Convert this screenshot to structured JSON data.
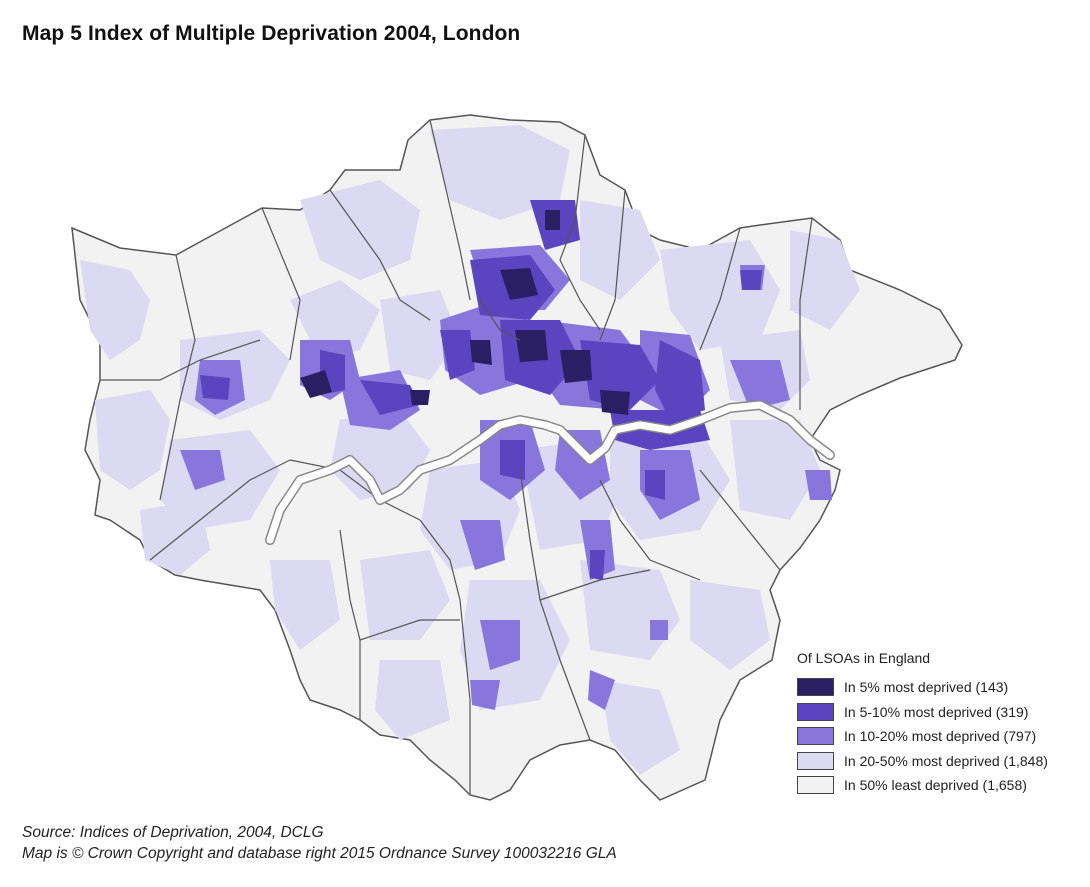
{
  "title": "Map 5 Index of Multiple Deprivation 2004, London",
  "legend": {
    "title": "Of LSOAs in England",
    "items": [
      {
        "label": "In 5% most deprived (143)",
        "color": "#2a1f63",
        "count": 143
      },
      {
        "label": "In 5-10% most deprived (319)",
        "color": "#5a44bf",
        "count": 319
      },
      {
        "label": "In 10-20% most deprived (797)",
        "color": "#8876dc",
        "count": 797
      },
      {
        "label": "In 20-50% most deprived (1,848)",
        "color": "#dcd9f2",
        "count": 1848
      },
      {
        "label": "In 50% least deprived (1,658)",
        "color": "#f2f2f2",
        "count": 1658
      }
    ]
  },
  "source": {
    "line1": "Source: Indices of Deprivation, 2004, DCLG",
    "line2": "Map is © Crown Copyright and database right 2015 Ordnance Survey 100032216 GLA"
  },
  "colors": {
    "boundary": "#555555",
    "river": "#ffffff",
    "river_outline": "#888888"
  }
}
